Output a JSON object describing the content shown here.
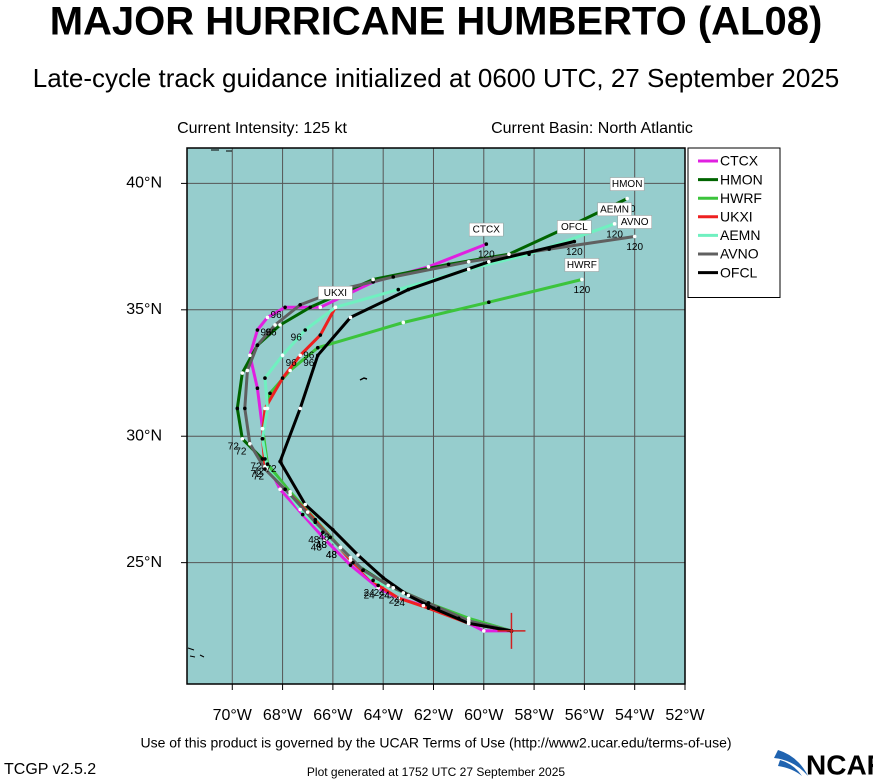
{
  "chart_data": {
    "type": "track_map",
    "title": "MAJOR HURRICANE HUMBERTO (AL08)",
    "subtitle": "Late-cycle track guidance initialized at 0600 UTC, 27 September 2025",
    "current_intensity": "Current Intensity: 125 kt",
    "current_basin": "Current Basin: North Atlantic",
    "xlim": [
      -71.8,
      -52
    ],
    "ylim": [
      20.2,
      41.4
    ],
    "xticks": [
      {
        "value": -70,
        "label": "70°W"
      },
      {
        "value": -68,
        "label": "68°W"
      },
      {
        "value": -66,
        "label": "66°W"
      },
      {
        "value": -64,
        "label": "64°W"
      },
      {
        "value": -62,
        "label": "62°W"
      },
      {
        "value": -60,
        "label": "60°W"
      },
      {
        "value": -58,
        "label": "58°W"
      },
      {
        "value": -56,
        "label": "56°W"
      },
      {
        "value": -54,
        "label": "54°W"
      },
      {
        "value": -52,
        "label": "52°W"
      }
    ],
    "yticks": [
      {
        "value": 25,
        "label": "25°N"
      },
      {
        "value": 30,
        "label": "30°N"
      },
      {
        "value": 35,
        "label": "35°N"
      },
      {
        "value": 40,
        "label": "40°N"
      }
    ],
    "grid": true,
    "background": "#96cdcd",
    "legend_position": "right",
    "current_position": {
      "lon": -58.9,
      "lat": 22.3
    },
    "series": [
      {
        "name": "CTCX",
        "color": "#e020e0",
        "lon": [
          -58.9,
          -60.0,
          -61.0,
          -62.4,
          -63.4,
          -64.2,
          -65.3,
          -66.3,
          -67.2,
          -68.1,
          -68.7,
          -68.8,
          -69.0,
          -69.3,
          -69.0,
          -68.6,
          -67.9,
          -66.5,
          -64.4,
          -62.2,
          -59.9
        ],
        "lat": [
          22.3,
          22.3,
          22.8,
          23.3,
          23.6,
          24.0,
          24.9,
          25.9,
          26.9,
          27.9,
          29.1,
          30.3,
          31.9,
          33.2,
          34.2,
          34.7,
          35.1,
          35.1,
          36.1,
          36.7,
          37.6
        ],
        "hour_labels": [
          null,
          null,
          null,
          null,
          null,
          24,
          null,
          48,
          null,
          null,
          72,
          null,
          null,
          null,
          null,
          null,
          96,
          null,
          null,
          null,
          120
        ]
      },
      {
        "name": "HMON",
        "color": "#006400",
        "lon": [
          -58.9,
          -60.6,
          -62.2,
          -63.8,
          -65.2,
          -66.1,
          -67.0,
          -67.9,
          -68.8,
          -69.6,
          -69.8,
          -69.6,
          -69.0,
          -68.1,
          -66.9,
          -64.4,
          -61.4,
          -59.0,
          -56.6,
          -54.3
        ],
        "lat": [
          22.3,
          22.6,
          23.4,
          24.1,
          25.0,
          26.0,
          27.0,
          27.9,
          29.1,
          29.9,
          31.1,
          32.5,
          33.6,
          34.4,
          35.1,
          36.2,
          36.8,
          37.2,
          38.3,
          39.4
        ],
        "hour_labels": [
          null,
          null,
          null,
          24,
          null,
          48,
          null,
          null,
          null,
          72,
          null,
          null,
          null,
          96,
          null,
          null,
          null,
          null,
          null,
          120
        ]
      },
      {
        "name": "HWRF",
        "color": "#3cc43c",
        "lon": [
          -58.9,
          -60.6,
          -62.2,
          -63.6,
          -64.8,
          -65.7,
          -66.7,
          -67.7,
          -68.6,
          -68.8,
          -68.5,
          -67.7,
          -66.6,
          -63.2,
          -59.8,
          -56.1
        ],
        "lat": [
          22.3,
          22.8,
          23.4,
          24.0,
          24.7,
          25.6,
          26.7,
          27.8,
          28.9,
          30.3,
          31.7,
          32.6,
          33.5,
          34.5,
          35.3,
          36.2
        ],
        "hour_labels": [
          null,
          null,
          null,
          24,
          null,
          48,
          null,
          null,
          72,
          null,
          null,
          null,
          96,
          null,
          null,
          120
        ]
      },
      {
        "name": "UKXI",
        "color": "#ee2020",
        "lon": [
          -58.9,
          -60.6,
          -62.2,
          -63.4,
          -64.2,
          -65.3,
          -66.1,
          -67.0,
          -67.9,
          -68.7,
          -68.8,
          -68.7,
          -68.0,
          -67.3,
          -66.5,
          -65.9
        ],
        "lat": [
          22.3,
          22.6,
          23.2,
          23.6,
          24.1,
          25.1,
          26.0,
          27.0,
          27.9,
          28.8,
          29.9,
          31.1,
          32.3,
          33.2,
          34.0,
          35.1
        ],
        "hour_labels": [
          null,
          null,
          null,
          null,
          24,
          null,
          48,
          null,
          null,
          72,
          null,
          null,
          null,
          96,
          null,
          null
        ]
      },
      {
        "name": "AEMN",
        "color": "#70f0c0",
        "lon": [
          -58.9,
          -60.6,
          -61.8,
          -63.2,
          -64.4,
          -65.3,
          -66.4,
          -67.3,
          -67.9,
          -68.6,
          -68.8,
          -68.6,
          -68.7,
          -68.0,
          -67.1,
          -65.9,
          -63.4,
          -60.6,
          -58.2,
          -54.8
        ],
        "lat": [
          22.3,
          22.7,
          23.2,
          23.8,
          24.3,
          25.2,
          26.2,
          27.1,
          27.9,
          28.7,
          29.9,
          31.1,
          32.3,
          33.2,
          34.2,
          35.1,
          35.8,
          36.6,
          37.2,
          38.4
        ],
        "hour_labels": [
          null,
          null,
          null,
          24,
          null,
          null,
          48,
          null,
          null,
          72,
          null,
          null,
          null,
          null,
          96,
          null,
          null,
          null,
          null,
          120
        ]
      },
      {
        "name": "AVNO",
        "color": "#606060",
        "lon": [
          -58.9,
          -60.6,
          -62.2,
          -63.6,
          -64.8,
          -65.7,
          -66.7,
          -67.7,
          -68.7,
          -69.3,
          -69.5,
          -69.4,
          -69.0,
          -68.3,
          -67.3,
          -65.7,
          -63.6,
          -60.6,
          -57.4,
          -54.0
        ],
        "lat": [
          22.3,
          22.7,
          23.4,
          24.0,
          24.7,
          25.6,
          26.6,
          27.7,
          28.7,
          29.7,
          31.1,
          32.6,
          33.6,
          34.4,
          35.2,
          35.8,
          36.3,
          36.9,
          37.4,
          37.9
        ],
        "hour_labels": [
          null,
          null,
          null,
          24,
          null,
          48,
          null,
          null,
          null,
          72,
          null,
          null,
          null,
          96,
          null,
          null,
          null,
          null,
          null,
          120
        ]
      },
      {
        "name": "OFCL",
        "color": "#000000",
        "lon": [
          -58.9,
          -60.6,
          -62.0,
          -63.0,
          -64.0,
          -65.0,
          -66.0,
          -67.1,
          -68.1,
          -67.3,
          -66.6,
          -65.3,
          -63.0,
          -59.8,
          -56.4
        ],
        "lat": [
          22.3,
          22.6,
          23.2,
          23.7,
          24.4,
          25.3,
          26.3,
          27.3,
          29.0,
          31.1,
          33.2,
          34.7,
          35.8,
          36.9,
          37.7
        ],
        "hour_labels": [
          null,
          null,
          null,
          24,
          null,
          null,
          48,
          null,
          72,
          null,
          96,
          null,
          null,
          null,
          120
        ]
      }
    ]
  },
  "footer": {
    "terms": "Use of this product is governed by the UCAR Terms of Use (http://www2.ucar.edu/terms-of-use)",
    "version": "TCGP v2.5.2",
    "generated": "Plot generated at 1752 UTC  27 September 2025",
    "logo": "NCAR"
  }
}
